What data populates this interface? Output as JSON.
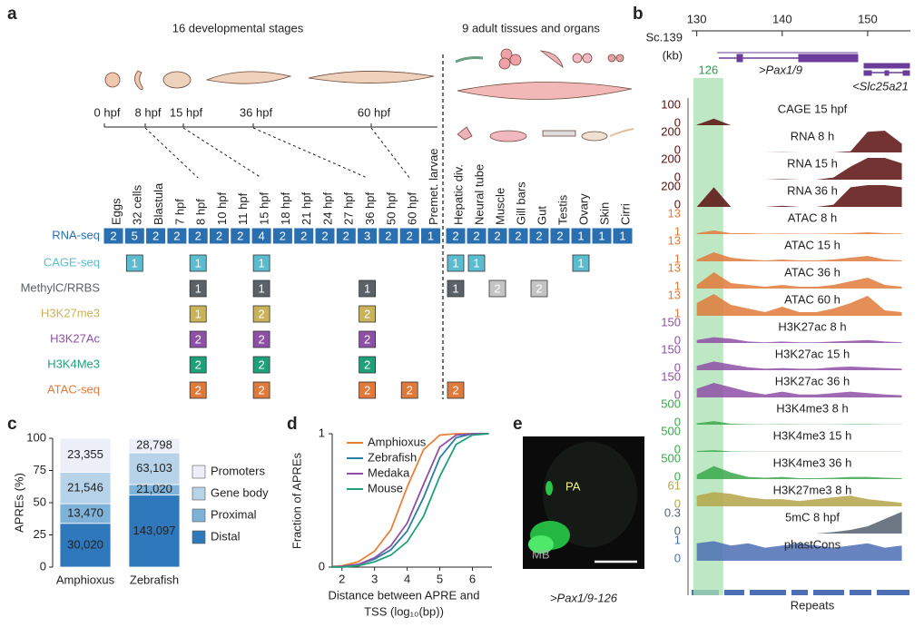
{
  "panel_a": {
    "letter": "a",
    "stages_heading": "16 developmental stages",
    "tissues_heading": "9 adult tissues and organs",
    "timeline": [
      "0 hpf",
      "8 hpf",
      "15 hpf",
      "36 hpf",
      "60 hpf"
    ],
    "columns": [
      "Eggs",
      "32 cells",
      "Blastula",
      "7 hpf",
      "8 hpf",
      "10 hpf",
      "11 hpf",
      "15 hpf",
      "18 hpf",
      "21 hpf",
      "24 hpf",
      "27 hpf",
      "36 hpf",
      "50 hpf",
      "60 hpf",
      "Premet. larvae",
      "Hepatic div.",
      "Neural tube",
      "Muscle",
      "Gill bars",
      "Gut",
      "Testis",
      "Ovary",
      "Skin",
      "Cirri"
    ],
    "rows": [
      {
        "name": "RNA-seq",
        "color": "#2a6fb0",
        "values": [
          2,
          5,
          2,
          2,
          2,
          2,
          2,
          4,
          2,
          2,
          2,
          2,
          3,
          2,
          2,
          1,
          2,
          2,
          2,
          2,
          2,
          2,
          1,
          1,
          1
        ]
      },
      {
        "name": "CAGE-seq",
        "color": "#5bbcd0",
        "values": [
          null,
          1,
          null,
          null,
          1,
          null,
          null,
          1,
          null,
          null,
          null,
          null,
          null,
          null,
          null,
          null,
          1,
          1,
          null,
          null,
          null,
          null,
          1,
          null,
          null
        ]
      },
      {
        "name": "MethylC/RRBS",
        "color": "#5a6168",
        "values": [
          null,
          null,
          null,
          null,
          1,
          null,
          null,
          1,
          null,
          null,
          null,
          null,
          1,
          null,
          null,
          null,
          1,
          null,
          2,
          null,
          2,
          null,
          null,
          null,
          null
        ],
        "cell_colors": [
          null,
          null,
          null,
          null,
          null,
          null,
          null,
          null,
          null,
          null,
          null,
          null,
          null,
          null,
          null,
          null,
          null,
          null,
          "#c4c4c4",
          null,
          "#c4c4c4",
          null,
          null,
          null,
          null
        ]
      },
      {
        "name": "H3K27me3",
        "color": "#c8b25a",
        "values": [
          null,
          null,
          null,
          null,
          1,
          null,
          null,
          2,
          null,
          null,
          null,
          null,
          2,
          null,
          null,
          null,
          null,
          null,
          null,
          null,
          null,
          null,
          null,
          null,
          null
        ]
      },
      {
        "name": "H3K27Ac",
        "color": "#8e4fa6",
        "values": [
          null,
          null,
          null,
          null,
          2,
          null,
          null,
          2,
          null,
          null,
          null,
          null,
          2,
          null,
          null,
          null,
          null,
          null,
          null,
          null,
          null,
          null,
          null,
          null,
          null
        ]
      },
      {
        "name": "H3K4Me3",
        "color": "#1fa07a",
        "values": [
          null,
          null,
          null,
          null,
          2,
          null,
          null,
          2,
          null,
          null,
          null,
          null,
          2,
          null,
          null,
          null,
          null,
          null,
          null,
          null,
          null,
          null,
          null,
          null,
          null
        ]
      },
      {
        "name": "ATAC-seq",
        "color": "#e07a3a",
        "values": [
          null,
          null,
          null,
          null,
          2,
          null,
          null,
          2,
          null,
          null,
          null,
          null,
          2,
          null,
          2,
          null,
          2,
          null,
          null,
          null,
          null,
          null,
          null,
          null,
          null
        ]
      }
    ]
  },
  "panel_b": {
    "letter": "b",
    "scaffold": "Sc.139",
    "unit": "(kb)",
    "xlim": [
      129.4,
      155
    ],
    "xticks": [
      130,
      140,
      150
    ],
    "genes": [
      ">Pax1/9",
      "<Slc25a21"
    ],
    "highlight": {
      "label": "126",
      "range": [
        129.6,
        133.1
      ]
    },
    "signal_x": [
      130,
      132,
      134,
      136,
      138,
      140,
      142,
      144,
      146,
      148,
      150,
      152,
      154
    ],
    "tracks": [
      {
        "name": "CAGE 15 hpf",
        "color": "#5a0f0f",
        "ylim": [
          0,
          100
        ],
        "signal": [
          2,
          30,
          0,
          0,
          0,
          0,
          0,
          0,
          0,
          0,
          0,
          0,
          0
        ]
      },
      {
        "name": "RNA 8 h",
        "color": "#5a0f0f",
        "ylim": [
          0,
          200
        ],
        "signal": [
          0,
          0,
          0,
          0,
          0,
          2,
          0,
          0,
          0,
          10,
          190,
          200,
          80
        ]
      },
      {
        "name": "RNA 15 h",
        "color": "#5a0f0f",
        "ylim": [
          0,
          200
        ],
        "signal": [
          0,
          0,
          0,
          0,
          0,
          5,
          0,
          0,
          20,
          120,
          200,
          200,
          150
        ]
      },
      {
        "name": "RNA 36 h",
        "color": "#5a0f0f",
        "ylim": [
          0,
          200
        ],
        "signal": [
          0,
          180,
          0,
          0,
          0,
          10,
          0,
          0,
          20,
          180,
          200,
          200,
          180
        ]
      },
      {
        "name": "ATAC 8 h",
        "color": "#e07a3a",
        "ylim": [
          1,
          13
        ],
        "signal": [
          1.5,
          3,
          1.5,
          1.5,
          1.2,
          1.3,
          1.2,
          1.2,
          1.3,
          1.5,
          2,
          1.5,
          1.3
        ]
      },
      {
        "name": "ATAC 15 h",
        "color": "#e07a3a",
        "ylim": [
          1,
          13
        ],
        "signal": [
          2,
          6,
          3,
          2,
          1.5,
          2,
          1.5,
          1.5,
          2,
          3,
          4,
          2,
          1.5
        ]
      },
      {
        "name": "ATAC 36 h",
        "color": "#e07a3a",
        "ylim": [
          1,
          13
        ],
        "signal": [
          3,
          10,
          4,
          3,
          2,
          3,
          2,
          2,
          3,
          5,
          7,
          3,
          2
        ]
      },
      {
        "name": "ATAC 60 h",
        "color": "#e07a3a",
        "ylim": [
          1,
          13
        ],
        "signal": [
          8,
          13,
          7,
          5,
          3,
          6,
          3,
          3,
          5,
          8,
          12,
          4,
          3
        ]
      },
      {
        "name": "H3K27ac 8 h",
        "color": "#8e4fa6",
        "ylim": [
          0,
          150
        ],
        "signal": [
          20,
          40,
          30,
          10,
          5,
          10,
          5,
          5,
          10,
          15,
          20,
          10,
          5
        ]
      },
      {
        "name": "H3K27ac 15 h",
        "color": "#8e4fa6",
        "ylim": [
          0,
          150
        ],
        "signal": [
          30,
          60,
          40,
          20,
          10,
          15,
          10,
          10,
          20,
          25,
          20,
          15,
          10
        ]
      },
      {
        "name": "H3K27ac 36 h",
        "color": "#8e4fa6",
        "ylim": [
          0,
          150
        ],
        "signal": [
          60,
          100,
          70,
          40,
          20,
          40,
          20,
          20,
          30,
          40,
          30,
          20,
          15
        ]
      },
      {
        "name": "H3K4me3 8 h",
        "color": "#3aa84a",
        "ylim": [
          0,
          500
        ],
        "signal": [
          30,
          80,
          20,
          10,
          5,
          10,
          5,
          5,
          5,
          10,
          10,
          5,
          5
        ]
      },
      {
        "name": "H3K4me3 15 h",
        "color": "#3aa84a",
        "ylim": [
          0,
          500
        ],
        "signal": [
          20,
          40,
          10,
          5,
          5,
          5,
          5,
          5,
          5,
          5,
          5,
          5,
          5
        ]
      },
      {
        "name": "H3K4me3 36 h",
        "color": "#3aa84a",
        "ylim": [
          0,
          500
        ],
        "signal": [
          100,
          300,
          150,
          50,
          30,
          50,
          20,
          20,
          30,
          50,
          50,
          30,
          20
        ]
      },
      {
        "name": "H3K27me3 8 h",
        "color": "#b5a54a",
        "ylim": [
          0,
          61
        ],
        "signal": [
          30,
          40,
          35,
          25,
          20,
          20,
          15,
          20,
          25,
          30,
          20,
          15,
          10
        ]
      },
      {
        "name": "5mC 8 hpf",
        "color": "#556070",
        "ylim": [
          0,
          0.3
        ],
        "signal": [
          0,
          0,
          0,
          0,
          0,
          0,
          0,
          0,
          0.02,
          0.05,
          0.1,
          0.2,
          0.3
        ]
      },
      {
        "name": "phastCons",
        "color": "#4d6fb5",
        "ylim": [
          0,
          1
        ],
        "signal": [
          0.8,
          0.9,
          0.7,
          0.8,
          0.6,
          0.7,
          0.8,
          0.7,
          0.6,
          0.7,
          0.8,
          0.6,
          0.7
        ]
      }
    ],
    "repeats_label": "Repeats"
  },
  "panel_c": {
    "letter": "c",
    "type": "stacked_bar",
    "ylabel": "APREs (%)",
    "ylim": [
      0,
      100
    ],
    "yticks": [
      0,
      25,
      50,
      75,
      100
    ],
    "categories": [
      "Amphioxus",
      "Zebrafish"
    ],
    "series": [
      {
        "name": "Distal",
        "color": "#2f78bb",
        "values": [
          33.96,
          55.89
        ],
        "labels": [
          "30,020",
          "143,097"
        ]
      },
      {
        "name": "Proximal",
        "color": "#7fb2d8",
        "values": [
          15.24,
          8.21
        ],
        "labels": [
          "13,470",
          "21,020"
        ]
      },
      {
        "name": "Gene body",
        "color": "#b7d3ea",
        "values": [
          24.38,
          24.65
        ],
        "labels": [
          "21,546",
          "63,103"
        ]
      },
      {
        "name": "Promoters",
        "color": "#eceff8",
        "values": [
          26.42,
          11.25
        ],
        "labels": [
          "23,355",
          "28,798"
        ]
      }
    ]
  },
  "panel_d": {
    "letter": "d",
    "type": "line",
    "ylabel": "Fraction of APREs",
    "xlabel": [
      "Distance between APRE and",
      "TSS (log₁₀(bp))"
    ],
    "xlim": [
      1.7,
      6.6
    ],
    "ylim": [
      0,
      1
    ],
    "xticks": [
      2,
      3,
      4,
      5,
      6
    ],
    "yticks": [
      0,
      1
    ],
    "x": [
      1.5,
      2,
      2.5,
      3,
      3.5,
      4,
      4.5,
      5,
      5.5,
      6,
      6.5
    ],
    "series": [
      {
        "name": "Amphioxus",
        "color": "#e8803a",
        "values": [
          0,
          0.01,
          0.04,
          0.12,
          0.28,
          0.6,
          0.88,
          0.99,
          1,
          1,
          1
        ]
      },
      {
        "name": "Zebrafish",
        "color": "#2a7ea3",
        "values": [
          0,
          0.005,
          0.02,
          0.06,
          0.13,
          0.27,
          0.52,
          0.82,
          0.97,
          1,
          1
        ]
      },
      {
        "name": "Medaka",
        "color": "#8e4fa6",
        "values": [
          0,
          0.005,
          0.02,
          0.07,
          0.16,
          0.33,
          0.62,
          0.9,
          0.99,
          1,
          1
        ]
      },
      {
        "name": "Mouse",
        "color": "#1fa07a",
        "values": [
          0,
          0,
          0.01,
          0.04,
          0.09,
          0.19,
          0.38,
          0.68,
          0.92,
          0.99,
          1
        ]
      }
    ]
  },
  "panel_e": {
    "letter": "e",
    "labels": [
      "PA",
      "MB"
    ],
    "caption": ">Pax1/9-126"
  }
}
